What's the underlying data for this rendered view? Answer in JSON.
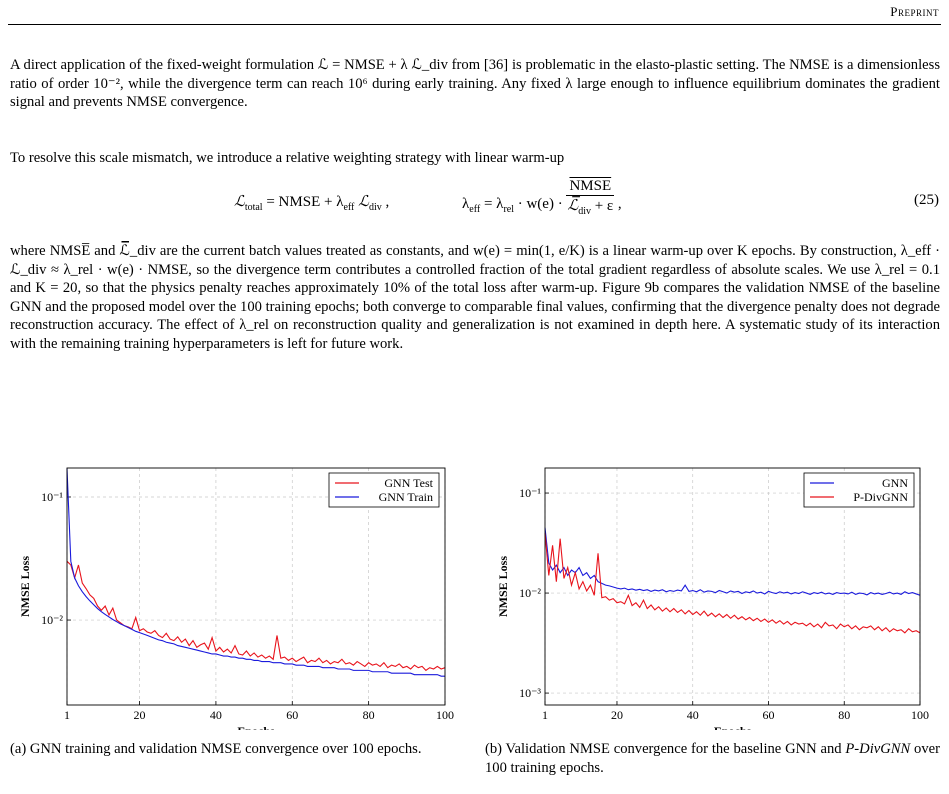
{
  "header": {
    "label": "Preprint"
  },
  "paragraphs": [
    "A direct application of the fixed-weight formulation ℒ = NMSE + λ ℒ_div from [36] is problematic in the elasto-plastic setting. The NMSE is a dimensionless ratio of order 10⁻², while the divergence term can reach 10⁶ during early training. Any fixed λ large enough to influence equilibrium dominates the gradient signal and prevents NMSE convergence.",
    "To resolve this scale mismatch, we introduce a relative weighting strategy with linear warm-up",
    "where NMSE̅ and ℒ̅_div are the current batch values treated as constants, and w(e) = min(1, e/K) is a linear warm-up over K epochs. By construction, λ_eff · ℒ_div ≈ λ_rel · w(e) · NMSE, so the divergence term contributes a controlled fraction of the total gradient regardless of absolute scales. We use λ_rel = 0.1 and K = 20, so that the physics penalty reaches approximately 10% of the total loss after warm-up. Figure 9b compares the validation NMSE of the baseline GNN and the proposed model over the 100 training epochs; both converge to comparable final values, confirming that the divergence penalty does not degrade reconstruction accuracy. The effect of λ_rel on reconstruction quality and generalization is not examined in depth here. A systematic study of its interaction with the remaining training hyperparameters is left for future work."
  ],
  "equation": {
    "a": "ℒ",
    "a_sub": "total",
    "b": " = NMSE + λ",
    "b_sub": "eff",
    "c": " ℒ",
    "c_sub": "div",
    "d": " ,",
    "e": "λ",
    "e_sub": "eff",
    "f": " = λ",
    "f_sub": "rel",
    "g": " · w(e) · ",
    "num": "NMSE",
    "den": "ℒ̅",
    "den_sub": "div",
    "den_tail": " + ε",
    "h": " ,",
    "number": "(25)"
  },
  "captions": [
    {
      "text": "(a) GNN training and validation NMSE convergence over 100 epochs."
    },
    {
      "pre": "(b) Validation NMSE convergence for the baseline GNN and ",
      "em": "P-DivGNN",
      "post": " over 100 training epochs."
    }
  ],
  "chart_data": [
    {
      "type": "line",
      "xlabel": "Epochs",
      "ylabel": "NMSE Loss",
      "log_y": true,
      "grid": true,
      "legend": "upper right",
      "xlim": [
        1,
        100
      ],
      "ylim": [
        0.00204,
        0.172
      ],
      "xticks": [
        1,
        20,
        40,
        60,
        80,
        100
      ],
      "yticks": [
        {
          "value": 0.1,
          "label": "10⁻¹"
        },
        {
          "value": 0.01,
          "label": "10⁻²"
        }
      ],
      "x": [
        1,
        2,
        3,
        4,
        5,
        6,
        7,
        8,
        9,
        10,
        11,
        12,
        13,
        14,
        15,
        16,
        17,
        18,
        19,
        20,
        21,
        22,
        23,
        24,
        25,
        26,
        27,
        28,
        29,
        30,
        31,
        32,
        33,
        34,
        35,
        36,
        37,
        38,
        39,
        40,
        41,
        42,
        43,
        44,
        45,
        46,
        47,
        48,
        49,
        50,
        51,
        52,
        53,
        54,
        55,
        56,
        57,
        58,
        59,
        60,
        61,
        62,
        63,
        64,
        65,
        66,
        67,
        68,
        69,
        70,
        71,
        72,
        73,
        74,
        75,
        76,
        77,
        78,
        79,
        80,
        81,
        82,
        83,
        84,
        85,
        86,
        87,
        88,
        89,
        90,
        91,
        92,
        93,
        94,
        95,
        96,
        97,
        98,
        99,
        100
      ],
      "series": [
        {
          "name": "GNN Test",
          "color": "#e8141c",
          "values": [
            0.03,
            0.028,
            0.022,
            0.028,
            0.02,
            0.018,
            0.016,
            0.015,
            0.013,
            0.012,
            0.013,
            0.011,
            0.0125,
            0.01,
            0.0095,
            0.009,
            0.0088,
            0.0085,
            0.0105,
            0.0082,
            0.0085,
            0.008,
            0.0078,
            0.0082,
            0.0075,
            0.0072,
            0.0078,
            0.007,
            0.0068,
            0.0073,
            0.0066,
            0.007,
            0.0062,
            0.0068,
            0.006,
            0.0063,
            0.0065,
            0.0058,
            0.0072,
            0.0056,
            0.006,
            0.0055,
            0.0058,
            0.0054,
            0.0062,
            0.0053,
            0.0052,
            0.0056,
            0.0051,
            0.0054,
            0.005,
            0.0052,
            0.0049,
            0.0051,
            0.0048,
            0.0075,
            0.0049,
            0.005,
            0.0047,
            0.0049,
            0.0046,
            0.0048,
            0.005,
            0.0045,
            0.0047,
            0.0046,
            0.0049,
            0.0045,
            0.0047,
            0.0044,
            0.0046,
            0.0045,
            0.0048,
            0.0044,
            0.0045,
            0.0043,
            0.0046,
            0.0044,
            0.0042,
            0.0045,
            0.0043,
            0.0044,
            0.0042,
            0.0045,
            0.0041,
            0.0043,
            0.0042,
            0.0044,
            0.0041,
            0.0042,
            0.004,
            0.0043,
            0.0041,
            0.0042,
            0.0039,
            0.0041,
            0.004,
            0.0042,
            0.004,
            0.0041
          ]
        },
        {
          "name": "GNN Train",
          "color": "#1a1adc",
          "values": [
            0.17,
            0.03,
            0.022,
            0.019,
            0.017,
            0.0155,
            0.0143,
            0.0133,
            0.0124,
            0.0117,
            0.0111,
            0.0106,
            0.0101,
            0.0097,
            0.0093,
            0.009,
            0.0087,
            0.0084,
            0.0081,
            0.0079,
            0.0077,
            0.0075,
            0.0073,
            0.0071,
            0.0069,
            0.0068,
            0.0066,
            0.0065,
            0.0064,
            0.0062,
            0.0061,
            0.006,
            0.0059,
            0.0058,
            0.0057,
            0.0056,
            0.0055,
            0.0054,
            0.0053,
            0.0053,
            0.0052,
            0.0051,
            0.0051,
            0.005,
            0.005,
            0.0049,
            0.0049,
            0.0048,
            0.0048,
            0.0047,
            0.0047,
            0.0046,
            0.0046,
            0.0046,
            0.0045,
            0.0045,
            0.0045,
            0.0044,
            0.0044,
            0.0044,
            0.0043,
            0.0043,
            0.0043,
            0.0042,
            0.0042,
            0.0042,
            0.0042,
            0.0041,
            0.0041,
            0.0041,
            0.0041,
            0.004,
            0.004,
            0.004,
            0.004,
            0.0039,
            0.0039,
            0.0039,
            0.0039,
            0.0039,
            0.0038,
            0.0038,
            0.0038,
            0.0038,
            0.0038,
            0.0037,
            0.0037,
            0.0037,
            0.0037,
            0.0037,
            0.0037,
            0.0036,
            0.0036,
            0.0036,
            0.0036,
            0.0036,
            0.0036,
            0.0036,
            0.0035,
            0.0035
          ]
        }
      ]
    },
    {
      "type": "line",
      "xlabel": "Epochs",
      "ylabel": "NMSE Loss",
      "log_y": true,
      "grid": true,
      "legend": "upper right",
      "xlim": [
        1,
        100
      ],
      "ylim": [
        0.00076,
        0.178
      ],
      "xticks": [
        1,
        20,
        40,
        60,
        80,
        100
      ],
      "yticks": [
        {
          "value": 0.1,
          "label": "10⁻¹"
        },
        {
          "value": 0.01,
          "label": "10⁻²"
        },
        {
          "value": 0.001,
          "label": "10⁻³"
        }
      ],
      "x": [
        1,
        2,
        3,
        4,
        5,
        6,
        7,
        8,
        9,
        10,
        11,
        12,
        13,
        14,
        15,
        16,
        17,
        18,
        19,
        20,
        21,
        22,
        23,
        24,
        25,
        26,
        27,
        28,
        29,
        30,
        31,
        32,
        33,
        34,
        35,
        36,
        37,
        38,
        39,
        40,
        41,
        42,
        43,
        44,
        45,
        46,
        47,
        48,
        49,
        50,
        51,
        52,
        53,
        54,
        55,
        56,
        57,
        58,
        59,
        60,
        61,
        62,
        63,
        64,
        65,
        66,
        67,
        68,
        69,
        70,
        71,
        72,
        73,
        74,
        75,
        76,
        77,
        78,
        79,
        80,
        81,
        82,
        83,
        84,
        85,
        86,
        87,
        88,
        89,
        90,
        91,
        92,
        93,
        94,
        95,
        96,
        97,
        98,
        99,
        100
      ],
      "series": [
        {
          "name": "GNN",
          "color": "#1a1adc",
          "values": [
            0.045,
            0.02,
            0.017,
            0.019,
            0.016,
            0.018,
            0.015,
            0.017,
            0.016,
            0.018,
            0.015,
            0.016,
            0.014,
            0.015,
            0.013,
            0.0125,
            0.012,
            0.0118,
            0.0115,
            0.0112,
            0.011,
            0.0112,
            0.0108,
            0.011,
            0.0107,
            0.0109,
            0.0106,
            0.0108,
            0.0104,
            0.0107,
            0.0105,
            0.0108,
            0.0103,
            0.0106,
            0.0104,
            0.0107,
            0.0105,
            0.012,
            0.0104,
            0.0106,
            0.0103,
            0.0108,
            0.0102,
            0.0105,
            0.0104,
            0.0101,
            0.0106,
            0.0103,
            0.01,
            0.0105,
            0.0102,
            0.0104,
            0.0099,
            0.0103,
            0.0101,
            0.0105,
            0.01,
            0.0102,
            0.0098,
            0.0104,
            0.0101,
            0.0099,
            0.0103,
            0.01,
            0.0102,
            0.0098,
            0.0101,
            0.0099,
            0.0103,
            0.01,
            0.0097,
            0.0101,
            0.0099,
            0.0102,
            0.0098,
            0.01,
            0.0097,
            0.0101,
            0.0099,
            0.01,
            0.0098,
            0.0102,
            0.0097,
            0.01,
            0.0099,
            0.0096,
            0.0101,
            0.0098,
            0.01,
            0.0097,
            0.0099,
            0.0102,
            0.0098,
            0.01,
            0.0097,
            0.0103,
            0.0099,
            0.0101,
            0.0098,
            0.0095
          ]
        },
        {
          "name": "P-DivGNN",
          "color": "#e8141c",
          "values": [
            0.04,
            0.015,
            0.03,
            0.013,
            0.035,
            0.014,
            0.018,
            0.012,
            0.016,
            0.011,
            0.013,
            0.0105,
            0.012,
            0.0095,
            0.025,
            0.009,
            0.0092,
            0.0085,
            0.0088,
            0.008,
            0.0082,
            0.0078,
            0.0095,
            0.0075,
            0.008,
            0.0072,
            0.0085,
            0.007,
            0.0076,
            0.0068,
            0.0073,
            0.0066,
            0.0071,
            0.0065,
            0.007,
            0.0064,
            0.0068,
            0.0062,
            0.0067,
            0.0061,
            0.0065,
            0.006,
            0.0066,
            0.0059,
            0.0063,
            0.0058,
            0.0062,
            0.0057,
            0.0061,
            0.0056,
            0.006,
            0.0055,
            0.0058,
            0.0054,
            0.0057,
            0.0053,
            0.0056,
            0.0052,
            0.0055,
            0.0051,
            0.0054,
            0.005,
            0.0053,
            0.0049,
            0.0052,
            0.0048,
            0.0051,
            0.0049,
            0.005,
            0.0047,
            0.005,
            0.0046,
            0.0049,
            0.0045,
            0.0051,
            0.0047,
            0.0048,
            0.0044,
            0.0049,
            0.0046,
            0.0048,
            0.0044,
            0.0047,
            0.0043,
            0.0046,
            0.0045,
            0.0047,
            0.0043,
            0.0046,
            0.0042,
            0.0045,
            0.0041,
            0.0044,
            0.0042,
            0.0043,
            0.004,
            0.0044,
            0.0041,
            0.0042,
            0.004
          ]
        }
      ]
    }
  ]
}
